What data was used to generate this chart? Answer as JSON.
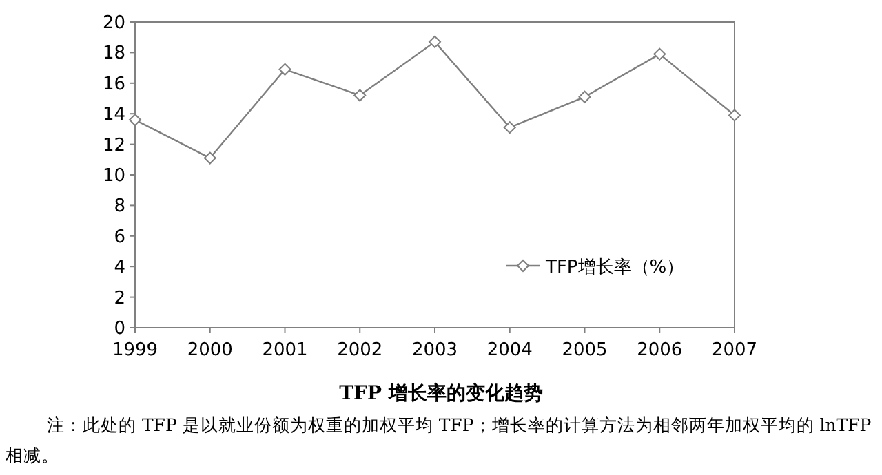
{
  "chart_data": {
    "type": "line",
    "title": "TFP 增长率的变化趋势",
    "categories": [
      "1999",
      "2000",
      "2001",
      "2002",
      "2003",
      "2004",
      "2005",
      "2006",
      "2007"
    ],
    "series": [
      {
        "name": "TFP增长率（%）",
        "color": "#7f7f7f",
        "values": [
          13.6,
          11.1,
          16.9,
          15.2,
          18.7,
          13.1,
          15.1,
          17.9,
          13.9
        ]
      }
    ],
    "ylim": [
      0,
      20
    ],
    "yticks": [
      0,
      2,
      4,
      6,
      8,
      10,
      12,
      14,
      16,
      18,
      20
    ],
    "marker": "diamond",
    "legend": "bottom right",
    "grid": false,
    "annotations": [
      "注：此处的 TFP 是以就业份额为权重的加权平均 TFP；增长率的计算方法为相邻两年加权平均的 lnTFP 相减。"
    ]
  }
}
